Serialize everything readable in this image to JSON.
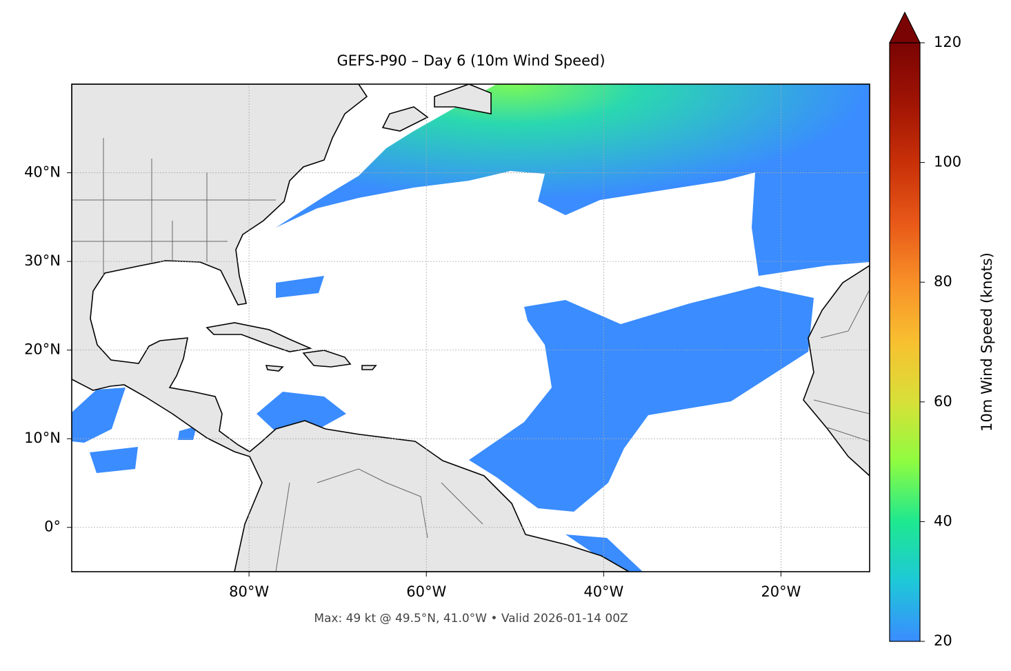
{
  "chart_data": {
    "type": "map",
    "title": "GEFS-P90 – Day 6 (10m Wind Speed)",
    "annotation": "Max: 49 kt @ 49.5°N, 41.0°W • Valid 2026-01-14 00Z",
    "xlim": [
      -100,
      -10
    ],
    "ylim": [
      -5,
      50
    ],
    "xticks": [
      {
        "value": -80,
        "label": "80°W"
      },
      {
        "value": -60,
        "label": "60°W"
      },
      {
        "value": -40,
        "label": "40°W"
      },
      {
        "value": -20,
        "label": "20°W"
      }
    ],
    "yticks": [
      {
        "value": 0,
        "label": "0°"
      },
      {
        "value": 10,
        "label": "10°N"
      },
      {
        "value": 20,
        "label": "20°N"
      },
      {
        "value": 30,
        "label": "30°N"
      },
      {
        "value": 40,
        "label": "40°N"
      }
    ],
    "grid": true,
    "colorbar": {
      "label": "10m Wind Speed (knots)",
      "lim": [
        20,
        120
      ],
      "ticks": [
        20,
        40,
        60,
        80,
        100,
        120
      ]
    }
  }
}
